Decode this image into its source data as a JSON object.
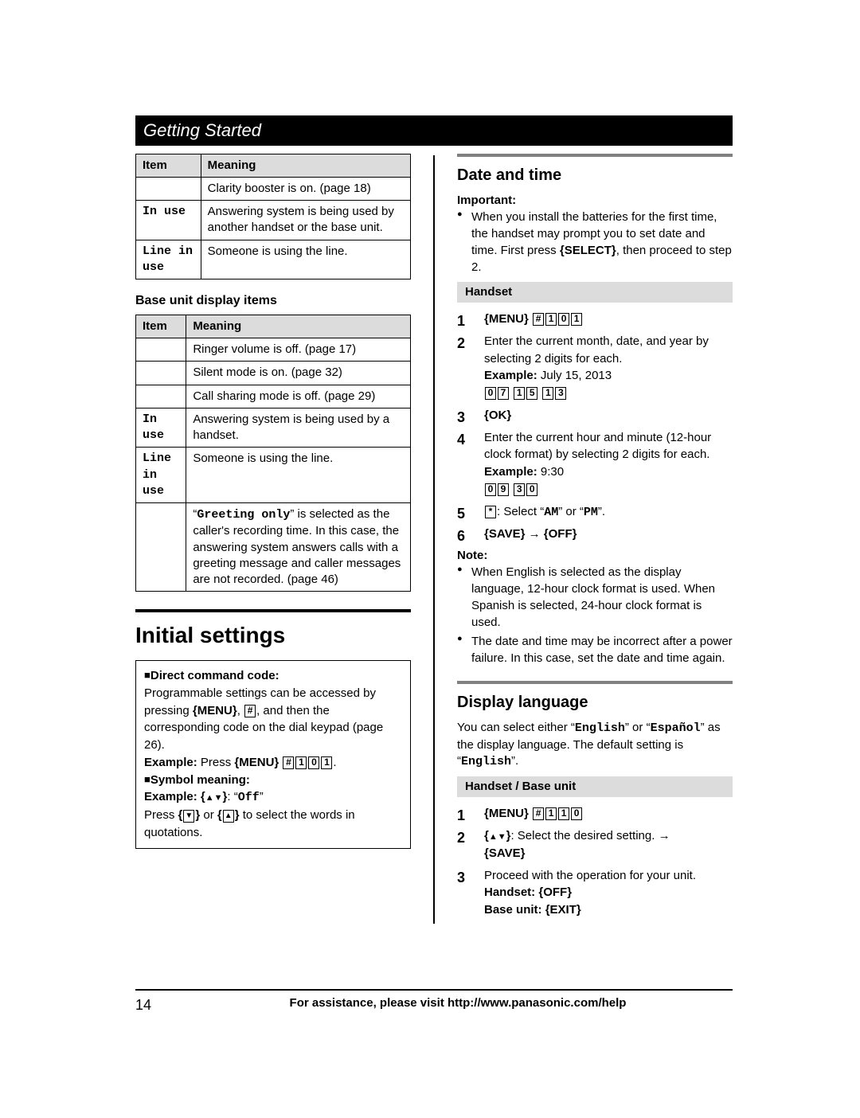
{
  "header": "Getting Started",
  "table1": {
    "cols": [
      "Item",
      "Meaning"
    ],
    "rows": [
      [
        "",
        "Clarity booster is on. (page 18)"
      ],
      [
        "In use",
        "Answering system is being used by another handset or the base unit."
      ],
      [
        "Line in use",
        "Someone is using the line."
      ]
    ]
  },
  "baseUnitHeading": "Base unit display items",
  "table2": {
    "cols": [
      "Item",
      "Meaning"
    ],
    "rows": [
      [
        "",
        "Ringer volume is off. (page 17)"
      ],
      [
        "",
        "Silent mode is on. (page 32)"
      ],
      [
        "",
        "Call sharing mode is off. (page 29)"
      ],
      [
        "In use",
        "Answering system is being used by a handset."
      ],
      [
        "Line in use",
        "Someone is using the line."
      ]
    ],
    "greetingRow": {
      "prefix": "“",
      "mono": "Greeting only",
      "suffix": "” is selected as the caller's recording time. In this case, the answering system answers calls with a greeting message and caller messages are not recorded. (page 46)"
    }
  },
  "initial": {
    "title": "Initial settings",
    "directLabel": "Direct command code:",
    "directBody1": "Programmable settings can be accessed by pressing ",
    "menu": "MENU",
    "directBody2": ", and then the corresponding code on the dial keypad (page 26).",
    "exampleLabel": "Example:",
    "exampleBody": " Press ",
    "exampleKeys": [
      "#",
      "1",
      "0",
      "1"
    ],
    "symbolLabel": "Symbol meaning:",
    "symbolExBody": ": ",
    "offMono": "Off",
    "pressBody1": "Press ",
    "pressBody2": " or ",
    "pressBody3": " to select the words in quotations."
  },
  "dateTime": {
    "title": "Date and time",
    "importantLabel": "Important:",
    "importantBody1": "When you install the batteries for the first time, the handset may prompt you to set date and time. First press ",
    "select": "SELECT",
    "importantBody2": ", then proceed to step 2.",
    "handsetLabel": "Handset",
    "step1Keys": [
      "#",
      "1",
      "0",
      "1"
    ],
    "step2Body": "Enter the current month, date, and year by selecting 2 digits for each.",
    "step2ExLabel": "Example:",
    "step2ExText": " July 15, 2013",
    "step2Keys": [
      "0",
      "7",
      "1",
      "5",
      "1",
      "3"
    ],
    "ok": "OK",
    "step4Body": "Enter the current hour and minute (12-hour clock format) by selecting 2 digits for each.",
    "step4ExLabel": "Example:",
    "step4ExText": " 9:30",
    "step4Keys": [
      "0",
      "9",
      "3",
      "0"
    ],
    "step5Body": ": Select ",
    "am": "AM",
    "pm": "PM",
    "or": " or ",
    "save": "SAVE",
    "off": "OFF",
    "noteLabel": "Note:",
    "note1": "When English is selected as the display language, 12-hour clock format is used. When Spanish is selected, 24-hour clock format is used.",
    "note2": "The date and time may be incorrect after a power failure. In this case, set the date and time again."
  },
  "display": {
    "title": "Display language",
    "body1": "You can select either ",
    "english": "English",
    "body2": " or ",
    "espanol": "Español",
    "body3": " as the display language. The default setting is ",
    "body4": ".",
    "hbLabel": "Handset / Base unit",
    "step1Keys": [
      "#",
      "1",
      "1",
      "0"
    ],
    "step2Body": ": Select the desired setting. ",
    "save": "SAVE",
    "step3Body": "Proceed with the operation for your unit.",
    "handsetLine": "Handset: ",
    "off": "OFF",
    "baseLine": "Base unit: ",
    "exit": "EXIT"
  },
  "footer": {
    "page": "14",
    "text": "For assistance, please visit http://www.panasonic.com/help"
  }
}
